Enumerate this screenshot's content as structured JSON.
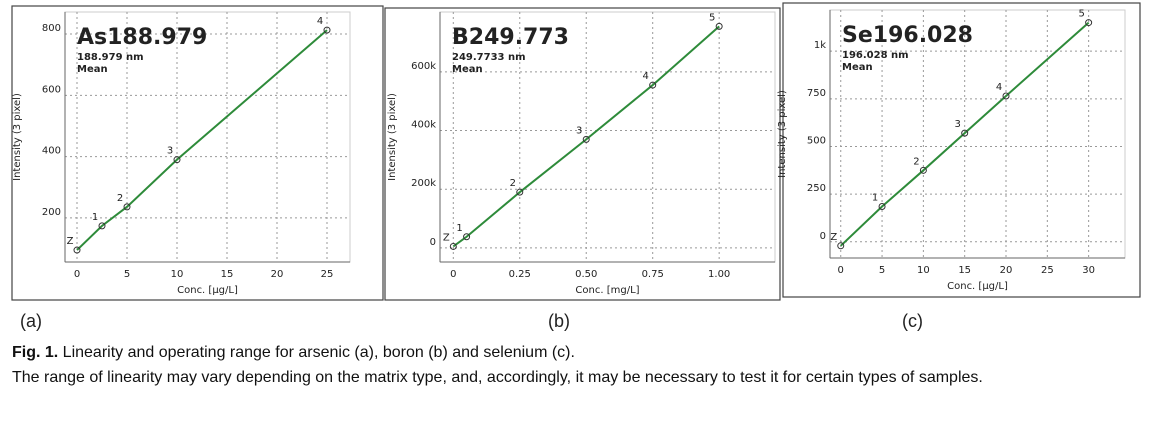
{
  "chart_data": [
    {
      "type": "scatter",
      "title": "As188.979",
      "subtitle": "188.979 nm",
      "statistic": "Mean",
      "x_label": "Conc. [µg/L]",
      "y_label": "Intensity (3 pixel)",
      "panel_label": "(a)",
      "x": [
        0,
        2.5,
        5,
        10,
        25
      ],
      "values": [
        95,
        174,
        236,
        390,
        813
      ],
      "point_labels": [
        "Z",
        "1",
        "2",
        "3",
        "4"
      ],
      "color": "#2e8b3a",
      "grid": true,
      "xlim": [
        -1.2,
        27.3
      ],
      "ylim": [
        56,
        872
      ],
      "xticks": [
        0,
        5,
        10,
        15,
        20,
        25
      ],
      "yticks": [
        200,
        400,
        600,
        800
      ]
    },
    {
      "type": "scatter",
      "title": "B249.773",
      "subtitle": "249.7733 nm",
      "statistic": "Mean",
      "x_label": "Conc. [mg/L]",
      "y_label": "Intensity (3 pixel)",
      "panel_label": "(b)",
      "x": [
        0,
        0.05,
        0.25,
        0.5,
        0.75,
        1.0
      ],
      "values": [
        5000,
        38000,
        190000,
        370000,
        555000,
        755000
      ],
      "point_labels": [
        "Z",
        "1",
        "2",
        "3",
        "4",
        "5"
      ],
      "color": "#2e8b3a",
      "grid": true,
      "xlim": [
        -0.05,
        1.21
      ],
      "ylim": [
        -48000,
        804000
      ],
      "xticks": [
        0,
        0.25,
        {
          "value": 0.5,
          "label": "0.50"
        },
        0.75,
        {
          "value": 1,
          "label": "1.00"
        }
      ],
      "yticks": [
        0,
        {
          "value": 200000,
          "label": "200k"
        },
        {
          "value": 400000,
          "label": "400k"
        },
        {
          "value": 600000,
          "label": "600k"
        }
      ]
    },
    {
      "type": "scatter",
      "title": "Se196.028",
      "subtitle": "196.028 nm",
      "statistic": "Mean",
      "x_label": "Conc. [µg/L]",
      "y_label": "Intensity (3 pixel)",
      "panel_label": "(c)",
      "x": [
        0,
        5,
        10,
        15,
        20,
        30
      ],
      "values": [
        -21,
        185,
        375,
        570,
        765,
        1150
      ],
      "point_labels": [
        "Z",
        "1",
        "2",
        "3",
        "4",
        "5"
      ],
      "color": "#2e8b3a",
      "grid": true,
      "xlim": [
        -1.3,
        34.4
      ],
      "ylim": [
        -85,
        1216
      ],
      "xticks": [
        0,
        5,
        10,
        15,
        20,
        25,
        30
      ],
      "yticks": [
        0,
        250,
        500,
        750,
        {
          "value": 1000,
          "label": "1k"
        }
      ]
    }
  ],
  "caption": {
    "label": "Fig. 1.",
    "text": " Linearity and operating range for arsenic (a), boron (b) and selenium (c).",
    "note": "The range of linearity may vary depending on the matrix type, and, accordingly, it may be necessary to test it for certain types of samples."
  }
}
